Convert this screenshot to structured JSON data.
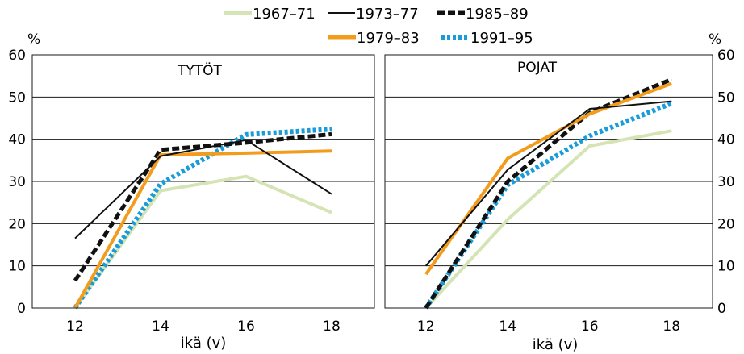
{
  "chart_data": [
    {
      "type": "line",
      "title": "TYTÖT",
      "xlabel": "ikä (v)",
      "ylabel": "%",
      "x": [
        12,
        14,
        16,
        18
      ],
      "xlim": [
        11.0,
        19.0
      ],
      "ylim": [
        0,
        60
      ],
      "yticks": [
        0,
        10,
        20,
        30,
        40,
        50,
        60
      ],
      "grid": true,
      "series": [
        {
          "name": "1967–71",
          "values": [
            0,
            27.8,
            31.2,
            22.6
          ],
          "color": "#d5e4b4"
        },
        {
          "name": "1973–77",
          "values": [
            16.5,
            36.0,
            39.8,
            27.0
          ],
          "color": "#111111"
        },
        {
          "name": "1979–83",
          "values": [
            0,
            36.3,
            36.7,
            37.2
          ],
          "color": "#f29b1c"
        },
        {
          "name": "1985–89",
          "values": [
            6.5,
            37.5,
            39.2,
            41.2
          ],
          "color": "#111111"
        },
        {
          "name": "1991–95",
          "values": [
            0,
            29.4,
            41.1,
            42.4
          ],
          "color": "#1a9cd8"
        }
      ]
    },
    {
      "type": "line",
      "title": "POJAT",
      "xlabel": "ikä (v)",
      "ylabel": "%",
      "x": [
        12,
        14,
        16,
        18
      ],
      "xlim": [
        11.0,
        19.0
      ],
      "ylim": [
        0,
        60
      ],
      "yticks": [
        0,
        10,
        20,
        30,
        40,
        50,
        60
      ],
      "grid": true,
      "series": [
        {
          "name": "1967–71",
          "values": [
            0,
            21.0,
            38.4,
            42.0
          ],
          "color": "#d5e4b4"
        },
        {
          "name": "1973–77",
          "values": [
            10.0,
            32.8,
            47.2,
            49.0
          ],
          "color": "#111111"
        },
        {
          "name": "1979–83",
          "values": [
            8.0,
            35.5,
            46.0,
            53.2
          ],
          "color": "#f29b1c"
        },
        {
          "name": "1985–89",
          "values": [
            0,
            30.0,
            46.3,
            54.2
          ],
          "color": "#111111"
        },
        {
          "name": "1991–95",
          "values": [
            0,
            29.2,
            40.8,
            48.5
          ],
          "color": "#1a9cd8"
        }
      ]
    }
  ],
  "legend": [
    {
      "label": "1967–71",
      "color": "#d5e4b4",
      "style": "solid"
    },
    {
      "label": "1973–77",
      "color": "#111111",
      "style": "thin"
    },
    {
      "label": "1985–89",
      "color": "#111111",
      "style": "dashed"
    },
    {
      "label": "1979–83",
      "color": "#f29b1c",
      "style": "solid"
    },
    {
      "label": "1991–95",
      "color": "#1a9cd8",
      "style": "dotted"
    }
  ]
}
